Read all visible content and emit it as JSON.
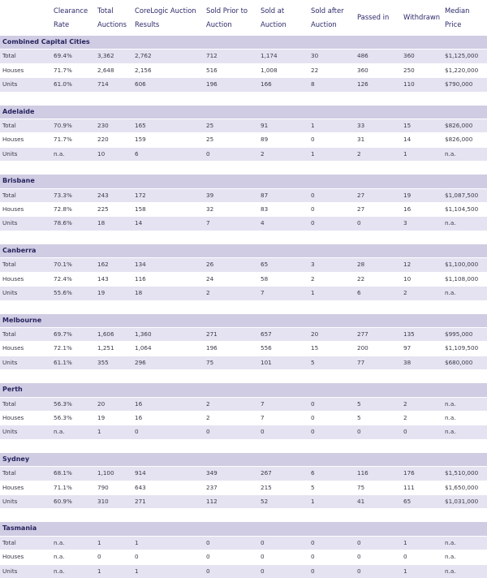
{
  "headers": [
    "",
    "Clearance Rate",
    "Total Auctions",
    "CoreLogic Auction Results",
    "Sold Prior to Auction",
    "Sold at Auction",
    "Sold after Auction",
    "Passed in",
    "Withdrawn",
    "Median Price"
  ],
  "sections": [
    {
      "name": "Combined Capital Cities",
      "rows": [
        {
          "label": "Total",
          "cells": [
            "69.4%",
            "3,362",
            "2,762",
            "712",
            "1,174",
            "30",
            "486",
            "360",
            "$1,125,000"
          ]
        },
        {
          "label": "Houses",
          "cells": [
            "71.7%",
            "2,648",
            "2,156",
            "516",
            "1,008",
            "22",
            "360",
            "250",
            "$1,220,000"
          ]
        },
        {
          "label": "Units",
          "cells": [
            "61.0%",
            "714",
            "606",
            "196",
            "166",
            "8",
            "126",
            "110",
            "$790,000"
          ]
        }
      ]
    },
    {
      "name": "Adelaide",
      "rows": [
        {
          "label": "Total",
          "cells": [
            "70.9%",
            "230",
            "165",
            "25",
            "91",
            "1",
            "33",
            "15",
            "$826,000"
          ]
        },
        {
          "label": "Houses",
          "cells": [
            "71.7%",
            "220",
            "159",
            "25",
            "89",
            "0",
            "31",
            "14",
            "$826,000"
          ]
        },
        {
          "label": "Units",
          "cells": [
            "n.a.",
            "10",
            "6",
            "0",
            "2",
            "1",
            "2",
            "1",
            "n.a."
          ]
        }
      ]
    },
    {
      "name": "Brisbane",
      "rows": [
        {
          "label": "Total",
          "cells": [
            "73.3%",
            "243",
            "172",
            "39",
            "87",
            "0",
            "27",
            "19",
            "$1,087,500"
          ]
        },
        {
          "label": "Houses",
          "cells": [
            "72.8%",
            "225",
            "158",
            "32",
            "83",
            "0",
            "27",
            "16",
            "$1,104,500"
          ]
        },
        {
          "label": "Units",
          "cells": [
            "78.6%",
            "18",
            "14",
            "7",
            "4",
            "0",
            "0",
            "3",
            "n.a."
          ]
        }
      ]
    },
    {
      "name": "Canberra",
      "rows": [
        {
          "label": "Total",
          "cells": [
            "70.1%",
            "162",
            "134",
            "26",
            "65",
            "3",
            "28",
            "12",
            "$1,100,000"
          ]
        },
        {
          "label": "Houses",
          "cells": [
            "72.4%",
            "143",
            "116",
            "24",
            "58",
            "2",
            "22",
            "10",
            "$1,108,000"
          ]
        },
        {
          "label": "Units",
          "cells": [
            "55.6%",
            "19",
            "18",
            "2",
            "7",
            "1",
            "6",
            "2",
            "n.a."
          ]
        }
      ]
    },
    {
      "name": "Melbourne",
      "rows": [
        {
          "label": "Total",
          "cells": [
            "69.7%",
            "1,606",
            "1,360",
            "271",
            "657",
            "20",
            "277",
            "135",
            "$995,000"
          ]
        },
        {
          "label": "Houses",
          "cells": [
            "72.1%",
            "1,251",
            "1,064",
            "196",
            "556",
            "15",
            "200",
            "97",
            "$1,109,500"
          ]
        },
        {
          "label": "Units",
          "cells": [
            "61.1%",
            "355",
            "296",
            "75",
            "101",
            "5",
            "77",
            "38",
            "$680,000"
          ]
        }
      ]
    },
    {
      "name": "Perth",
      "rows": [
        {
          "label": "Total",
          "cells": [
            "56.3%",
            "20",
            "16",
            "2",
            "7",
            "0",
            "5",
            "2",
            "n.a."
          ]
        },
        {
          "label": "Houses",
          "cells": [
            "56.3%",
            "19",
            "16",
            "2",
            "7",
            "0",
            "5",
            "2",
            "n.a."
          ]
        },
        {
          "label": "Units",
          "cells": [
            "n.a.",
            "1",
            "0",
            "0",
            "0",
            "0",
            "0",
            "0",
            "n.a."
          ]
        }
      ]
    },
    {
      "name": "Sydney",
      "rows": [
        {
          "label": "Total",
          "cells": [
            "68.1%",
            "1,100",
            "914",
            "349",
            "267",
            "6",
            "116",
            "176",
            "$1,510,000"
          ]
        },
        {
          "label": "Houses",
          "cells": [
            "71.1%",
            "790",
            "643",
            "237",
            "215",
            "5",
            "75",
            "111",
            "$1,650,000"
          ]
        },
        {
          "label": "Units",
          "cells": [
            "60.9%",
            "310",
            "271",
            "112",
            "52",
            "1",
            "41",
            "65",
            "$1,031,000"
          ]
        }
      ]
    },
    {
      "name": "Tasmania",
      "rows": [
        {
          "label": "Total",
          "cells": [
            "n.a.",
            "1",
            "1",
            "0",
            "0",
            "0",
            "0",
            "1",
            "n.a."
          ]
        },
        {
          "label": "Houses",
          "cells": [
            "n.a.",
            "0",
            "0",
            "0",
            "0",
            "0",
            "0",
            "0",
            "n.a."
          ]
        },
        {
          "label": "Units",
          "cells": [
            "n.a.",
            "1",
            "1",
            "0",
            "0",
            "0",
            "0",
            "1",
            "n.a."
          ]
        }
      ]
    }
  ]
}
